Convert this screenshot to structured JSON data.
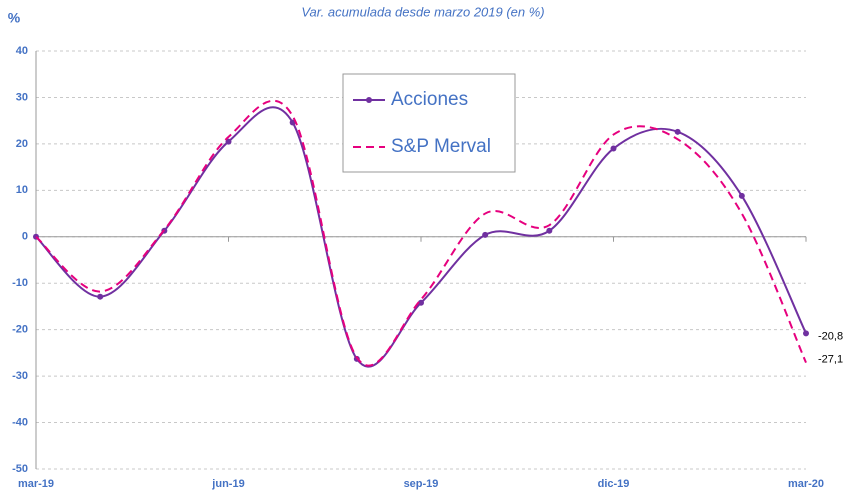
{
  "chart_data": {
    "type": "line",
    "title": "Var. acumulada desde marzo 2019 (en %)",
    "y_label": "%",
    "categories": [
      "mar-19",
      null,
      null,
      "jun-19",
      null,
      null,
      "sep-19",
      null,
      null,
      "dic-19",
      null,
      null,
      "mar-20"
    ],
    "series": [
      {
        "name": "Acciones",
        "color": "#7030a0",
        "values": [
          0,
          -12.9,
          1.3,
          20.5,
          24.6,
          -26.3,
          -14.2,
          0.4,
          1.3,
          19.0,
          22.6,
          8.8,
          -20.8
        ],
        "value_labels": [
          null,
          null,
          null,
          null,
          null,
          null,
          null,
          null,
          null,
          null,
          null,
          null,
          "-20,8"
        ]
      },
      {
        "name": "S&P Merval",
        "color": "#e6007e",
        "values": [
          0,
          -11.8,
          1.5,
          21.5,
          26.0,
          -26.0,
          -13.5,
          5.0,
          2.5,
          22.0,
          21.0,
          5.0,
          -27.1
        ],
        "value_labels": [
          null,
          null,
          null,
          null,
          null,
          null,
          null,
          null,
          null,
          null,
          null,
          null,
          "-27,1"
        ]
      }
    ],
    "ylim": [
      -50,
      40
    ],
    "yticks": [
      -50,
      -40,
      -30,
      -20,
      -10,
      0,
      10,
      20,
      30,
      40
    ],
    "grid": true,
    "legend": "upper center"
  }
}
